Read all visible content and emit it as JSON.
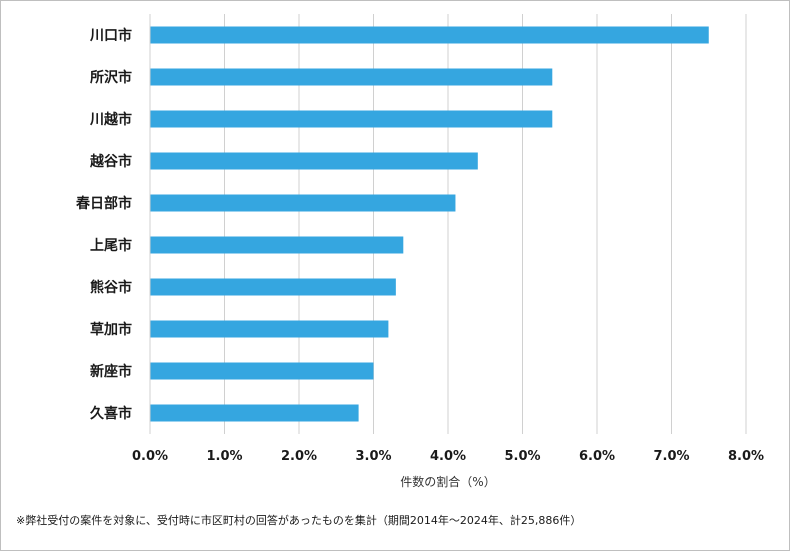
{
  "chart_data": {
    "type": "bar",
    "orientation": "horizontal",
    "categories": [
      "川口市",
      "所沢市",
      "川越市",
      "越谷市",
      "春日部市",
      "上尾市",
      "熊谷市",
      "草加市",
      "新座市",
      "久喜市"
    ],
    "values": [
      7.5,
      5.4,
      5.4,
      4.4,
      4.1,
      3.4,
      3.3,
      3.2,
      3.0,
      2.8
    ],
    "xlim": [
      0,
      8
    ],
    "xticks": [
      "0.0%",
      "1.0%",
      "2.0%",
      "3.0%",
      "4.0%",
      "5.0%",
      "6.0%",
      "7.0%",
      "8.0%"
    ],
    "xlabel": "件数の割合（%）",
    "grid": true,
    "bar_color": "#35a6e0"
  },
  "footnote": "※弊社受付の案件を対象に、受付時に市区町村の回答があったものを集計（期間2014年～2024年、計25,886件）"
}
